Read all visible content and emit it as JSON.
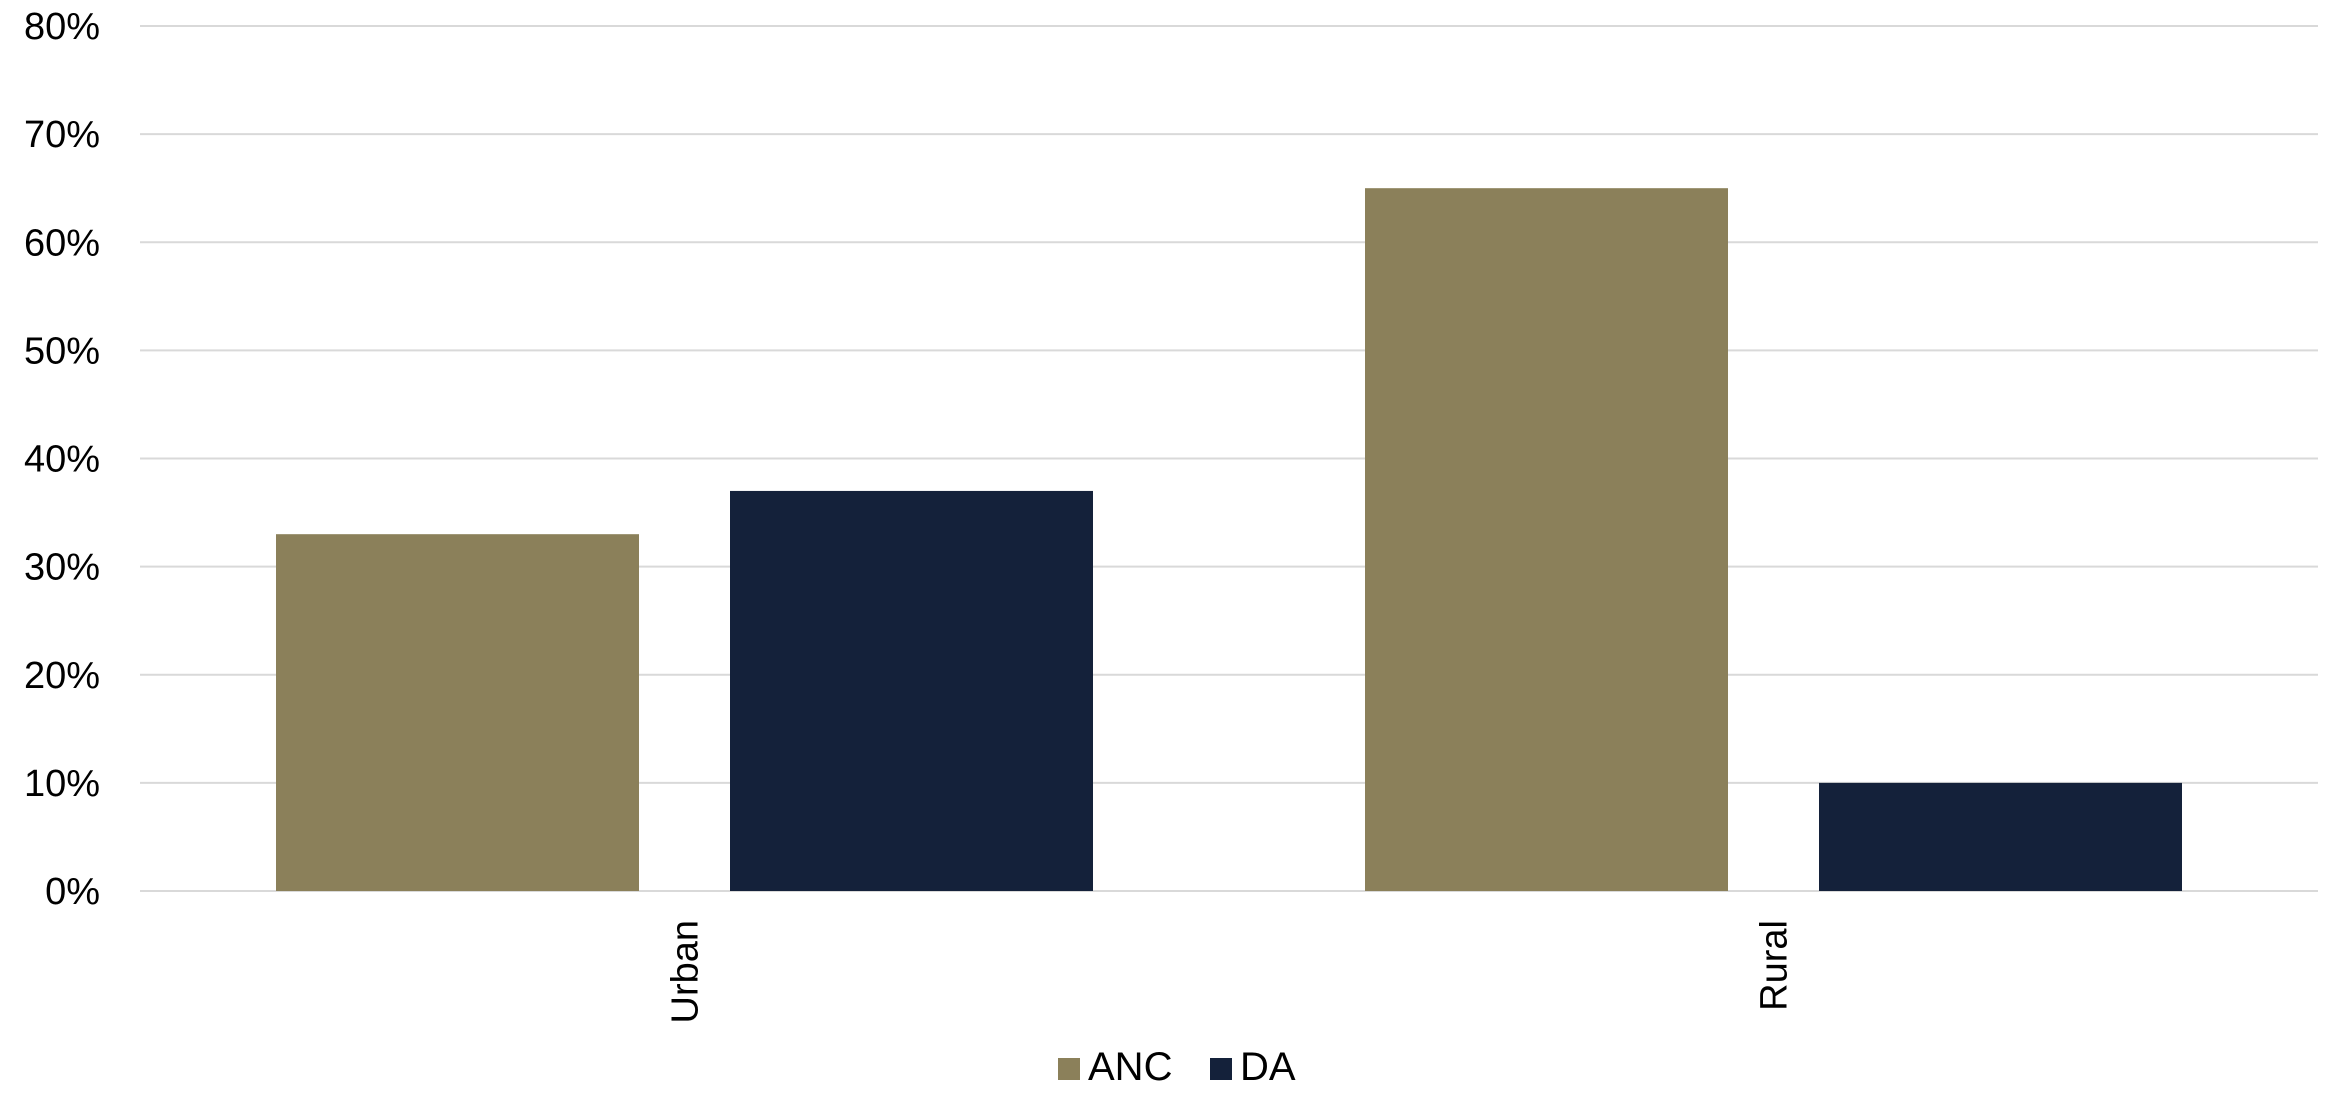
{
  "chart_data": {
    "type": "bar",
    "categories": [
      "Urban",
      "Rural"
    ],
    "series": [
      {
        "name": "ANC",
        "values": [
          33,
          65
        ],
        "color": "#8b805a"
      },
      {
        "name": "DA",
        "values": [
          37,
          10
        ],
        "color": "#14213a"
      }
    ],
    "ylim": [
      0,
      80
    ],
    "y_ticks": [
      0,
      10,
      20,
      30,
      40,
      50,
      60,
      70,
      80
    ],
    "y_tick_labels": [
      "0%",
      "10%",
      "20%",
      "30%",
      "40%",
      "50%",
      "60%",
      "70%",
      "80%"
    ],
    "title": "",
    "xlabel": "",
    "ylabel": "",
    "grid": true,
    "legend_position": "bottom",
    "category_label_orientation": "vertical"
  }
}
